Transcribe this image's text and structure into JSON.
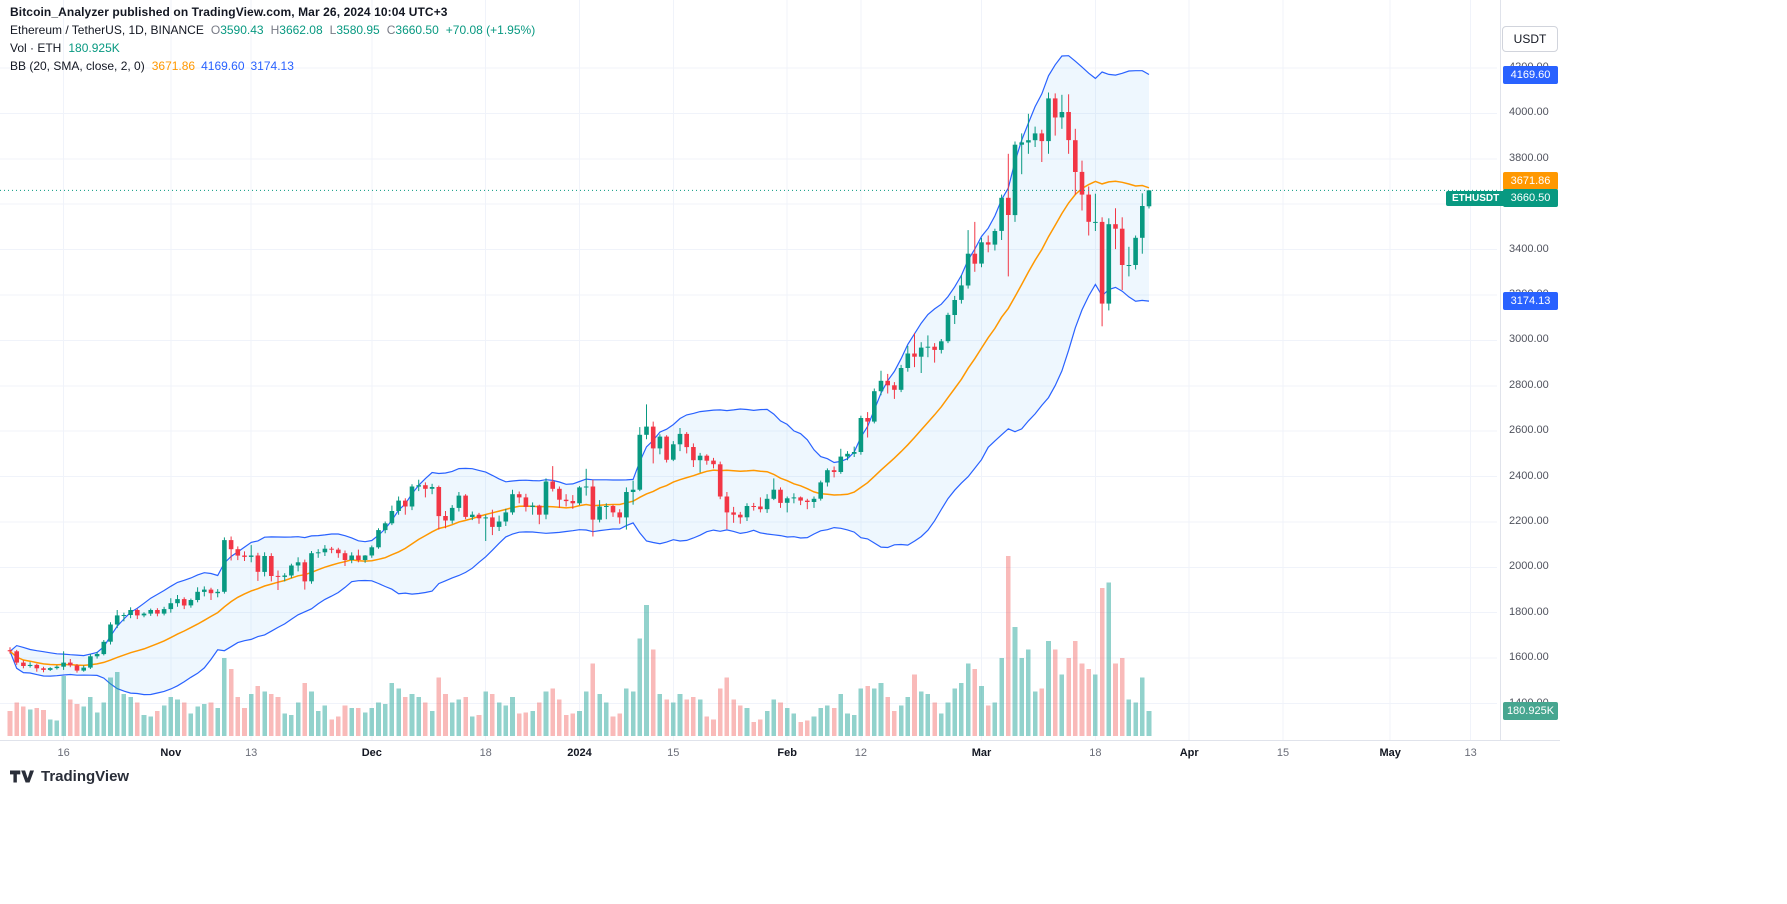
{
  "header": {
    "byline": "Bitcoin_Analyzer published on TradingView.com, Mar 26, 2024 10:04 UTC+3",
    "symbol_title": "Ethereum / TetherUS, 1D, BINANCE",
    "ohlc": [
      {
        "k": "O",
        "v": "3590.43"
      },
      {
        "k": "H",
        "v": "3662.08"
      },
      {
        "k": "L",
        "v": "3580.95"
      },
      {
        "k": "C",
        "v": "3660.50"
      }
    ],
    "change": "+70.08 (+1.95%)",
    "volume_line": {
      "label": "Vol · ETH",
      "value": "180.925K"
    },
    "bb_line": {
      "label": "BB (20, SMA, close, 2, 0)",
      "basis": "3671.86",
      "upper": "4169.60",
      "lower": "3174.13"
    }
  },
  "axis": {
    "currency_button": "USDT",
    "labels": {
      "upper_band": {
        "text": "4169.60",
        "value": 4169.6,
        "color": "#2962ff"
      },
      "basis": {
        "text": "3671.86",
        "value": 3671.86,
        "color": "#ff9800"
      },
      "last_price": {
        "text": "3660.50",
        "value": 3660.5,
        "color": "#089981",
        "tag": "ETHUSDT"
      },
      "lower_band": {
        "text": "3174.13",
        "value": 3174.13,
        "color": "#2962ff"
      },
      "volume": {
        "text": "180.925K",
        "color": "#47a690"
      }
    }
  },
  "footer": {
    "logo_text": "TradingView"
  },
  "colors": {
    "up": "#089981",
    "down": "#f23645",
    "band": "#2962ff",
    "band_fill": "rgba(33,150,243,0.08)",
    "basis": "#ff9800",
    "vol_up": "rgba(38,166,154,0.5)",
    "vol_down": "rgba(239,83,80,0.4)",
    "grid": "#f0f3fa",
    "price_line": "#089981"
  },
  "chart_data": {
    "type": "candlestick",
    "title": "Ethereum / TetherUS, 1D, BINANCE",
    "symbol": "ETHUSDT",
    "interval": "1D",
    "exchange": "BINANCE",
    "start_date": "2023-10-08",
    "volume_unit": "K",
    "price_axis": {
      "min": 1400,
      "max": 4200,
      "step": 200
    },
    "price_ticks": [
      "4200.00",
      "4000.00",
      "3800.00",
      "3600.00",
      "3400.00",
      "3200.00",
      "3000.00",
      "2800.00",
      "2600.00",
      "2400.00",
      "2200.00",
      "2000.00",
      "1800.00",
      "1600.00",
      "1400.00"
    ],
    "time_ticks": [
      {
        "label": "16",
        "day": 8,
        "major": false
      },
      {
        "label": "Nov",
        "day": 24,
        "major": true
      },
      {
        "label": "13",
        "day": 36,
        "major": false
      },
      {
        "label": "Dec",
        "day": 54,
        "major": true
      },
      {
        "label": "18",
        "day": 71,
        "major": false
      },
      {
        "label": "2024",
        "day": 85,
        "major": true
      },
      {
        "label": "15",
        "day": 99,
        "major": false
      },
      {
        "label": "Feb",
        "day": 116,
        "major": true
      },
      {
        "label": "12",
        "day": 127,
        "major": false
      },
      {
        "label": "Mar",
        "day": 145,
        "major": true
      },
      {
        "label": "18",
        "day": 162,
        "major": false
      },
      {
        "label": "Apr",
        "day": 176,
        "major": true
      },
      {
        "label": "15",
        "day": 190,
        "major": false
      },
      {
        "label": "May",
        "day": 206,
        "major": true
      },
      {
        "label": "13",
        "day": 218,
        "major": false
      }
    ],
    "bollinger": {
      "length": 20,
      "source": "close",
      "stddev": 2,
      "offset": 0,
      "basis": 3671.86,
      "upper": 4169.6,
      "lower": 3174.13
    },
    "last": {
      "open": 3590.43,
      "high": 3662.08,
      "low": 3580.95,
      "close": 3660.5,
      "change": "+70.08 (+1.95%)",
      "volume": "180.925K"
    },
    "candles": [
      [
        1635,
        1648,
        1620,
        1630,
        180
      ],
      [
        1630,
        1636,
        1570,
        1580,
        240
      ],
      [
        1580,
        1590,
        1555,
        1565,
        210
      ],
      [
        1565,
        1582,
        1558,
        1570,
        190
      ],
      [
        1570,
        1575,
        1540,
        1555,
        200
      ],
      [
        1555,
        1562,
        1538,
        1548,
        185
      ],
      [
        1548,
        1560,
        1543,
        1556,
        120
      ],
      [
        1556,
        1568,
        1550,
        1562,
        110
      ],
      [
        1562,
        1630,
        1548,
        1580,
        430
      ],
      [
        1580,
        1596,
        1560,
        1568,
        260
      ],
      [
        1568,
        1574,
        1536,
        1545,
        230
      ],
      [
        1545,
        1568,
        1540,
        1558,
        210
      ],
      [
        1558,
        1618,
        1552,
        1608,
        280
      ],
      [
        1608,
        1628,
        1598,
        1618,
        170
      ],
      [
        1618,
        1680,
        1612,
        1672,
        240
      ],
      [
        1672,
        1758,
        1660,
        1748,
        420
      ],
      [
        1748,
        1812,
        1732,
        1788,
        460
      ],
      [
        1788,
        1800,
        1762,
        1790,
        300
      ],
      [
        1790,
        1824,
        1776,
        1812,
        280
      ],
      [
        1812,
        1818,
        1772,
        1788,
        240
      ],
      [
        1788,
        1802,
        1780,
        1796,
        150
      ],
      [
        1796,
        1818,
        1786,
        1812,
        140
      ],
      [
        1812,
        1820,
        1784,
        1796,
        180
      ],
      [
        1796,
        1826,
        1788,
        1816,
        220
      ],
      [
        1816,
        1864,
        1800,
        1842,
        280
      ],
      [
        1842,
        1878,
        1826,
        1860,
        260
      ],
      [
        1860,
        1868,
        1816,
        1832,
        240
      ],
      [
        1832,
        1862,
        1822,
        1856,
        160
      ],
      [
        1856,
        1912,
        1846,
        1892,
        210
      ],
      [
        1892,
        1916,
        1872,
        1902,
        230
      ],
      [
        1902,
        1910,
        1856,
        1886,
        240
      ],
      [
        1886,
        1904,
        1868,
        1892,
        200
      ],
      [
        1892,
        2132,
        1884,
        2120,
        560
      ],
      [
        2120,
        2136,
        2030,
        2080,
        480
      ],
      [
        2080,
        2092,
        2032,
        2052,
        280
      ],
      [
        2052,
        2070,
        2028,
        2046,
        200
      ],
      [
        2046,
        2098,
        2022,
        2052,
        300
      ],
      [
        2052,
        2064,
        1940,
        1980,
        360
      ],
      [
        1980,
        2066,
        1960,
        2050,
        320
      ],
      [
        2050,
        2062,
        1938,
        1962,
        300
      ],
      [
        1962,
        1986,
        1900,
        1958,
        280
      ],
      [
        1958,
        1974,
        1938,
        1964,
        160
      ],
      [
        1964,
        2016,
        1952,
        2008,
        150
      ],
      [
        2008,
        2044,
        1982,
        2022,
        240
      ],
      [
        2022,
        2034,
        1902,
        1938,
        380
      ],
      [
        1938,
        2072,
        1928,
        2062,
        320
      ],
      [
        2062,
        2080,
        2042,
        2066,
        180
      ],
      [
        2066,
        2098,
        2050,
        2082,
        220
      ],
      [
        2082,
        2090,
        2062,
        2078,
        120
      ],
      [
        2078,
        2086,
        2042,
        2062,
        140
      ],
      [
        2062,
        2074,
        2006,
        2032,
        220
      ],
      [
        2032,
        2066,
        2018,
        2052,
        200
      ],
      [
        2052,
        2078,
        2022,
        2032,
        200
      ],
      [
        2032,
        2054,
        2020,
        2052,
        170
      ],
      [
        2052,
        2096,
        2042,
        2088,
        200
      ],
      [
        2088,
        2172,
        2082,
        2164,
        240
      ],
      [
        2164,
        2202,
        2150,
        2194,
        230
      ],
      [
        2194,
        2272,
        2186,
        2248,
        380
      ],
      [
        2248,
        2312,
        2232,
        2294,
        340
      ],
      [
        2294,
        2304,
        2232,
        2268,
        280
      ],
      [
        2268,
        2366,
        2252,
        2356,
        300
      ],
      [
        2356,
        2386,
        2336,
        2362,
        280
      ],
      [
        2362,
        2374,
        2308,
        2346,
        240
      ],
      [
        2346,
        2368,
        2322,
        2354,
        180
      ],
      [
        2354,
        2360,
        2166,
        2226,
        420
      ],
      [
        2226,
        2248,
        2172,
        2206,
        300
      ],
      [
        2206,
        2274,
        2192,
        2262,
        240
      ],
      [
        2262,
        2332,
        2246,
        2316,
        260
      ],
      [
        2316,
        2322,
        2212,
        2222,
        280
      ],
      [
        2222,
        2246,
        2208,
        2232,
        140
      ],
      [
        2232,
        2240,
        2192,
        2216,
        150
      ],
      [
        2216,
        2232,
        2116,
        2220,
        320
      ],
      [
        2220,
        2254,
        2142,
        2178,
        300
      ],
      [
        2178,
        2228,
        2160,
        2202,
        240
      ],
      [
        2202,
        2258,
        2182,
        2242,
        220
      ],
      [
        2242,
        2342,
        2232,
        2322,
        280
      ],
      [
        2322,
        2334,
        2282,
        2308,
        160
      ],
      [
        2308,
        2324,
        2246,
        2266,
        170
      ],
      [
        2266,
        2286,
        2232,
        2272,
        180
      ],
      [
        2272,
        2276,
        2190,
        2232,
        240
      ],
      [
        2232,
        2392,
        2212,
        2378,
        320
      ],
      [
        2378,
        2446,
        2334,
        2346,
        340
      ],
      [
        2346,
        2356,
        2262,
        2298,
        260
      ],
      [
        2298,
        2322,
        2268,
        2292,
        150
      ],
      [
        2292,
        2318,
        2258,
        2282,
        160
      ],
      [
        2282,
        2358,
        2274,
        2352,
        180
      ],
      [
        2352,
        2434,
        2316,
        2356,
        320
      ],
      [
        2356,
        2386,
        2136,
        2210,
        520
      ],
      [
        2210,
        2296,
        2198,
        2268,
        300
      ],
      [
        2268,
        2282,
        2212,
        2270,
        240
      ],
      [
        2270,
        2276,
        2222,
        2242,
        140
      ],
      [
        2242,
        2256,
        2192,
        2220,
        160
      ],
      [
        2220,
        2352,
        2166,
        2332,
        340
      ],
      [
        2332,
        2382,
        2276,
        2342,
        320
      ],
      [
        2342,
        2618,
        2336,
        2584,
        700
      ],
      [
        2584,
        2718,
        2564,
        2620,
        940
      ],
      [
        2620,
        2642,
        2458,
        2524,
        620
      ],
      [
        2524,
        2586,
        2498,
        2576,
        300
      ],
      [
        2576,
        2582,
        2462,
        2474,
        260
      ],
      [
        2474,
        2556,
        2468,
        2542,
        240
      ],
      [
        2542,
        2614,
        2512,
        2588,
        300
      ],
      [
        2588,
        2596,
        2502,
        2530,
        260
      ],
      [
        2530,
        2546,
        2442,
        2472,
        280
      ],
      [
        2472,
        2504,
        2418,
        2492,
        260
      ],
      [
        2492,
        2498,
        2452,
        2470,
        140
      ],
      [
        2470,
        2482,
        2436,
        2454,
        120
      ],
      [
        2454,
        2466,
        2300,
        2312,
        340
      ],
      [
        2312,
        2332,
        2168,
        2242,
        420
      ],
      [
        2242,
        2266,
        2196,
        2232,
        260
      ],
      [
        2232,
        2244,
        2192,
        2220,
        220
      ],
      [
        2220,
        2282,
        2204,
        2270,
        200
      ],
      [
        2270,
        2284,
        2250,
        2268,
        100
      ],
      [
        2268,
        2308,
        2242,
        2256,
        120
      ],
      [
        2256,
        2322,
        2240,
        2302,
        180
      ],
      [
        2302,
        2392,
        2296,
        2342,
        260
      ],
      [
        2342,
        2352,
        2262,
        2284,
        240
      ],
      [
        2284,
        2312,
        2242,
        2304,
        200
      ],
      [
        2304,
        2326,
        2282,
        2308,
        160
      ],
      [
        2308,
        2312,
        2274,
        2294,
        100
      ],
      [
        2294,
        2302,
        2256,
        2288,
        110
      ],
      [
        2288,
        2312,
        2262,
        2302,
        140
      ],
      [
        2302,
        2382,
        2294,
        2374,
        200
      ],
      [
        2374,
        2436,
        2356,
        2428,
        220
      ],
      [
        2428,
        2444,
        2396,
        2420,
        200
      ],
      [
        2420,
        2522,
        2412,
        2488,
        300
      ],
      [
        2488,
        2512,
        2472,
        2500,
        160
      ],
      [
        2500,
        2532,
        2486,
        2508,
        150
      ],
      [
        2508,
        2668,
        2496,
        2658,
        340
      ],
      [
        2658,
        2684,
        2572,
        2642,
        360
      ],
      [
        2642,
        2788,
        2634,
        2776,
        340
      ],
      [
        2776,
        2866,
        2758,
        2822,
        380
      ],
      [
        2822,
        2852,
        2766,
        2802,
        280
      ],
      [
        2802,
        2816,
        2742,
        2782,
        180
      ],
      [
        2782,
        2892,
        2772,
        2878,
        220
      ],
      [
        2878,
        2976,
        2862,
        2942,
        280
      ],
      [
        2942,
        3032,
        2882,
        2928,
        440
      ],
      [
        2928,
        2992,
        2856,
        2968,
        320
      ],
      [
        2968,
        3022,
        2926,
        2972,
        300
      ],
      [
        2972,
        2988,
        2902,
        2958,
        240
      ],
      [
        2958,
        3006,
        2942,
        2996,
        160
      ],
      [
        2996,
        3122,
        2988,
        3112,
        240
      ],
      [
        3112,
        3196,
        3072,
        3178,
        340
      ],
      [
        3178,
        3288,
        3162,
        3242,
        380
      ],
      [
        3242,
        3486,
        3228,
        3382,
        520
      ],
      [
        3382,
        3522,
        3302,
        3338,
        480
      ],
      [
        3338,
        3452,
        3322,
        3432,
        360
      ],
      [
        3432,
        3462,
        3388,
        3422,
        220
      ],
      [
        3422,
        3492,
        3396,
        3482,
        240
      ],
      [
        3482,
        3642,
        3442,
        3628,
        560
      ],
      [
        3628,
        3822,
        3282,
        3552,
        1290
      ],
      [
        3552,
        3876,
        3522,
        3862,
        780
      ],
      [
        3862,
        3912,
        3732,
        3872,
        560
      ],
      [
        3872,
        3998,
        3822,
        3882,
        620
      ],
      [
        3882,
        3942,
        3852,
        3912,
        320
      ],
      [
        3912,
        3928,
        3786,
        3878,
        340
      ],
      [
        3878,
        4092,
        3822,
        4066,
        680
      ],
      [
        4066,
        4088,
        3902,
        3982,
        620
      ],
      [
        3982,
        4082,
        3932,
        4006,
        440
      ],
      [
        4006,
        4084,
        3822,
        3882,
        560
      ],
      [
        3882,
        3932,
        3642,
        3742,
        680
      ],
      [
        3742,
        3792,
        3572,
        3642,
        520
      ],
      [
        3642,
        3678,
        3462,
        3522,
        480
      ],
      [
        3522,
        3646,
        3482,
        3522,
        440
      ],
      [
        3522,
        3542,
        3062,
        3162,
        1060
      ],
      [
        3162,
        3538,
        3132,
        3512,
        1100
      ],
      [
        3512,
        3582,
        3402,
        3492,
        520
      ],
      [
        3492,
        3542,
        3222,
        3332,
        560
      ],
      [
        3332,
        3412,
        3282,
        3332,
        260
      ],
      [
        3332,
        3462,
        3312,
        3452,
        240
      ],
      [
        3452,
        3648,
        3382,
        3592,
        420
      ],
      [
        3590.43,
        3662.08,
        3580.95,
        3660.5,
        180.925
      ]
    ]
  }
}
